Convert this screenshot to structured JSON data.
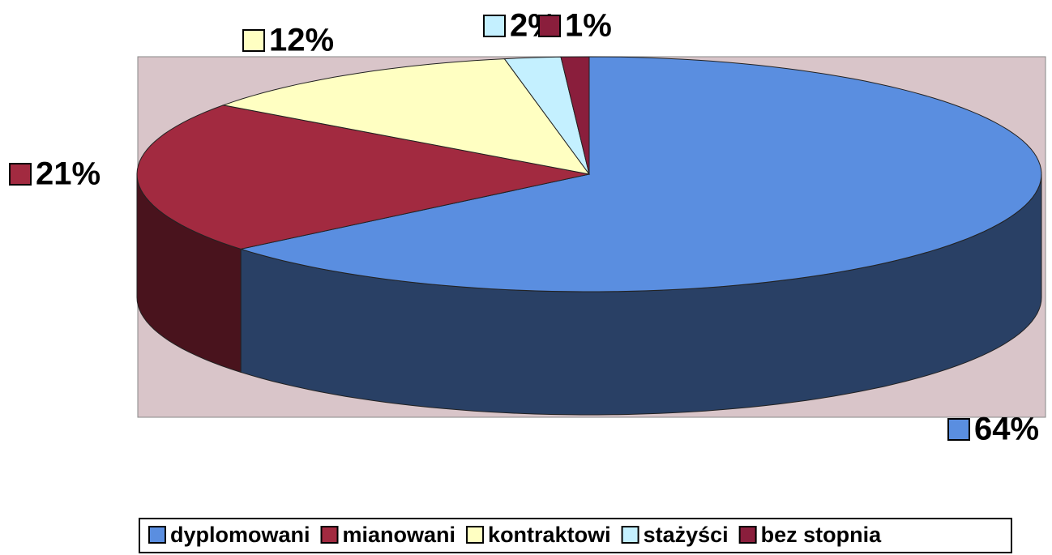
{
  "chart_data": {
    "type": "pie3d",
    "categories": [
      "dyplomowani",
      "mianowani",
      "kontraktowi",
      "stażyści",
      "bez stopnia"
    ],
    "values": [
      64,
      21,
      12,
      2,
      1
    ],
    "value_labels": [
      "64%",
      "21%",
      "12%",
      "2%",
      "1%"
    ],
    "colors": [
      "#5a8ee0",
      "#a22a40",
      "#ffffc2",
      "#c4f0ff",
      "#8a1e3c"
    ],
    "legend": "bottom"
  }
}
